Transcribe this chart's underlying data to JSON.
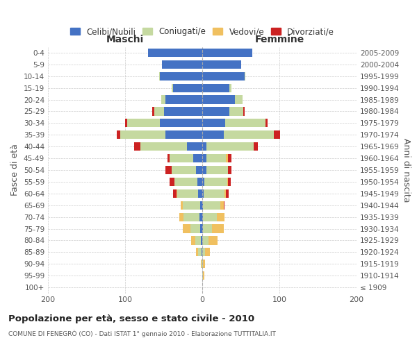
{
  "age_groups": [
    "100+",
    "95-99",
    "90-94",
    "85-89",
    "80-84",
    "75-79",
    "70-74",
    "65-69",
    "60-64",
    "55-59",
    "50-54",
    "45-49",
    "40-44",
    "35-39",
    "30-34",
    "25-29",
    "20-24",
    "15-19",
    "10-14",
    "5-9",
    "0-4"
  ],
  "birth_years": [
    "≤ 1909",
    "1910-1914",
    "1915-1919",
    "1920-1924",
    "1925-1929",
    "1930-1934",
    "1935-1939",
    "1940-1944",
    "1945-1949",
    "1950-1954",
    "1955-1959",
    "1960-1964",
    "1965-1969",
    "1970-1974",
    "1975-1979",
    "1980-1984",
    "1985-1989",
    "1990-1994",
    "1995-1999",
    "2000-2004",
    "2005-2009"
  ],
  "maschi": {
    "celibi": [
      0,
      0,
      0,
      1,
      2,
      3,
      4,
      3,
      5,
      6,
      8,
      12,
      20,
      48,
      55,
      50,
      48,
      38,
      55,
      52,
      70
    ],
    "coniugati": [
      0,
      0,
      1,
      4,
      7,
      12,
      20,
      22,
      27,
      30,
      32,
      30,
      60,
      58,
      42,
      12,
      5,
      2,
      1,
      0,
      0
    ],
    "vedovi": [
      0,
      0,
      1,
      3,
      5,
      10,
      6,
      3,
      1,
      0,
      0,
      0,
      0,
      0,
      0,
      0,
      0,
      0,
      0,
      0,
      0
    ],
    "divorziati": [
      0,
      0,
      0,
      0,
      0,
      0,
      0,
      0,
      5,
      6,
      8,
      3,
      8,
      5,
      3,
      3,
      0,
      0,
      0,
      0,
      0
    ]
  },
  "femmine": {
    "nubili": [
      0,
      0,
      0,
      0,
      0,
      1,
      1,
      1,
      2,
      3,
      5,
      5,
      5,
      28,
      30,
      35,
      42,
      35,
      55,
      50,
      65
    ],
    "coniugate": [
      0,
      1,
      1,
      4,
      8,
      12,
      18,
      22,
      27,
      29,
      28,
      26,
      62,
      65,
      52,
      18,
      10,
      3,
      1,
      0,
      0
    ],
    "vedove": [
      0,
      2,
      3,
      6,
      12,
      15,
      10,
      5,
      2,
      1,
      0,
      2,
      0,
      0,
      0,
      0,
      0,
      0,
      0,
      0,
      0
    ],
    "divorziate": [
      0,
      0,
      0,
      0,
      0,
      0,
      0,
      1,
      3,
      4,
      5,
      5,
      5,
      8,
      3,
      2,
      0,
      0,
      0,
      0,
      0
    ]
  },
  "colors": {
    "celibi_nubili": "#4472c4",
    "coniugati": "#c5d9a0",
    "vedovi": "#f0c060",
    "divorziati": "#cc2222"
  },
  "xlim": 200,
  "title": "Popolazione per età, sesso e stato civile - 2010",
  "subtitle": "COMUNE DI FENEGRÒ (CO) - Dati ISTAT 1° gennaio 2010 - Elaborazione TUTTITALIA.IT",
  "xlabel_maschi": "Maschi",
  "xlabel_femmine": "Femmine",
  "ylabel": "Fasce di età",
  "ylabel_right": "Anni di nascita",
  "legend_labels": [
    "Celibi/Nubili",
    "Coniugati/e",
    "Vedovi/e",
    "Divorziati/e"
  ],
  "background_color": "#ffffff",
  "grid_color": "#cccccc",
  "text_color": "#555555",
  "title_color": "#222222",
  "tick_fontsize": 7.5,
  "axis_label_fontsize": 9,
  "header_fontsize": 10,
  "legend_fontsize": 8.5,
  "title_fontsize": 9.5,
  "subtitle_fontsize": 6.5
}
